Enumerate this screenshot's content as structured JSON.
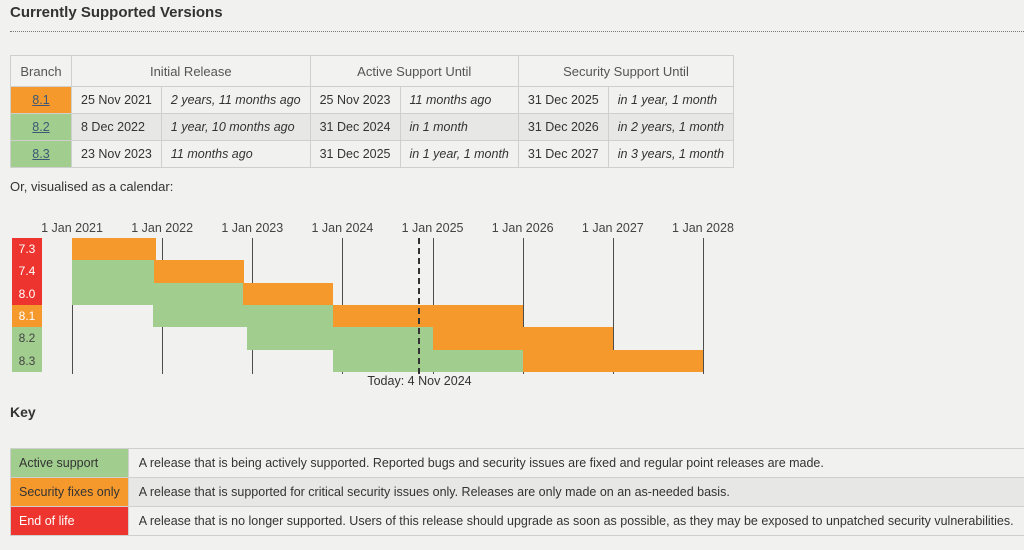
{
  "page": {
    "title": "Currently Supported Versions",
    "calendar_intro": "Or, visualised as a calendar:",
    "key_heading": "Key"
  },
  "colors": {
    "active": "#a1ce8e",
    "security": "#f6992c",
    "eol": "#ee342e",
    "page_bg": "#f1f1f0",
    "stripe": "#e7e7e6",
    "border": "#cfcfce",
    "link": "#3c5875"
  },
  "support_table": {
    "headers": [
      "Branch",
      "Initial Release",
      "Active Support Until",
      "Security Support Until"
    ],
    "rows": [
      {
        "branch": "8.1",
        "status": "security",
        "initial_release": "25 Nov 2021",
        "initial_release_rel": "2 years, 11 months ago",
        "active_until": "25 Nov 2023",
        "active_until_rel": "11 months ago",
        "security_until": "31 Dec 2025",
        "security_until_rel": "in 1 year, 1 month"
      },
      {
        "branch": "8.2",
        "status": "active",
        "initial_release": "8 Dec 2022",
        "initial_release_rel": "1 year, 10 months ago",
        "active_until": "31 Dec 2024",
        "active_until_rel": "in 1 month",
        "security_until": "31 Dec 2026",
        "security_until_rel": "in 2 years, 1 month"
      },
      {
        "branch": "8.3",
        "status": "active",
        "initial_release": "23 Nov 2023",
        "initial_release_rel": "11 months ago",
        "active_until": "31 Dec 2025",
        "active_until_rel": "in 1 year, 1 month",
        "security_until": "31 Dec 2027",
        "security_until_rel": "in 3 years, 1 month"
      }
    ]
  },
  "chart_data": {
    "type": "gantt-calendar",
    "axis": {
      "start_year": 2021,
      "end_year": 2028,
      "tick_labels": [
        "1 Jan 2021",
        "1 Jan 2022",
        "1 Jan 2023",
        "1 Jan 2024",
        "1 Jan 2025",
        "1 Jan 2026",
        "1 Jan 2027",
        "1 Jan 2028"
      ]
    },
    "today_year": 2024.844,
    "today_label": "Today: 4 Nov 2024",
    "rows": [
      {
        "branch": "7.3",
        "label_status": "eol",
        "segments": [
          {
            "kind": "security",
            "from": 2021.0,
            "to": 2021.93
          }
        ]
      },
      {
        "branch": "7.4",
        "label_status": "eol",
        "segments": [
          {
            "kind": "active",
            "from": 2021.0,
            "to": 2021.907
          },
          {
            "kind": "security",
            "from": 2021.907,
            "to": 2022.907
          }
        ]
      },
      {
        "branch": "8.0",
        "label_status": "eol",
        "segments": [
          {
            "kind": "active",
            "from": 2021.0,
            "to": 2022.9
          },
          {
            "kind": "security",
            "from": 2022.9,
            "to": 2023.9
          }
        ]
      },
      {
        "branch": "8.1",
        "label_status": "security",
        "segments": [
          {
            "kind": "active",
            "from": 2021.898,
            "to": 2023.898
          },
          {
            "kind": "security",
            "from": 2023.898,
            "to": 2026.0
          }
        ]
      },
      {
        "branch": "8.2",
        "label_status": "active",
        "segments": [
          {
            "kind": "active",
            "from": 2022.936,
            "to": 2025.0
          },
          {
            "kind": "security",
            "from": 2025.0,
            "to": 2027.0
          }
        ]
      },
      {
        "branch": "8.3",
        "label_status": "active",
        "segments": [
          {
            "kind": "active",
            "from": 2023.893,
            "to": 2026.0
          },
          {
            "kind": "security",
            "from": 2026.0,
            "to": 2028.0
          }
        ]
      }
    ]
  },
  "key_table": {
    "rows": [
      {
        "label": "Active support",
        "status": "active",
        "description": "A release that is being actively supported. Reported bugs and security issues are fixed and regular point releases are made."
      },
      {
        "label": "Security fixes only",
        "status": "security",
        "description": "A release that is supported for critical security issues only. Releases are only made on an as-needed basis."
      },
      {
        "label": "End of life",
        "status": "eol",
        "description": "A release that is no longer supported. Users of this release should upgrade as soon as possible, as they may be exposed to unpatched security vulnerabilities."
      }
    ]
  }
}
